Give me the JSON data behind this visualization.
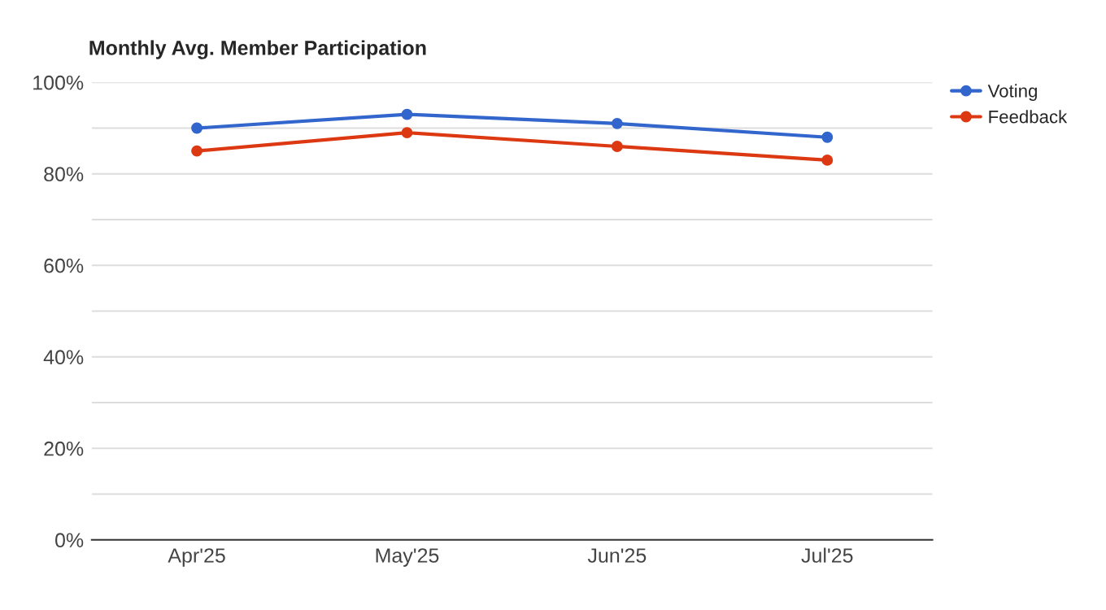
{
  "chart_data": {
    "type": "line",
    "title": "Monthly Avg. Member Participation",
    "categories": [
      "Apr'25",
      "May'25",
      "Jun'25",
      "Jul'25"
    ],
    "series": [
      {
        "name": "Voting",
        "color": "#3366cc",
        "values": [
          90,
          93,
          91,
          88
        ]
      },
      {
        "name": "Feedback",
        "color": "#dc3912",
        "values": [
          85,
          89,
          86,
          83
        ]
      }
    ],
    "ylim": [
      0,
      100
    ],
    "yticks": [
      {
        "value": 0,
        "label": "0%"
      },
      {
        "value": 10,
        "label": null
      },
      {
        "value": 20,
        "label": "20%"
      },
      {
        "value": 30,
        "label": null
      },
      {
        "value": 40,
        "label": "40%"
      },
      {
        "value": 50,
        "label": null
      },
      {
        "value": 60,
        "label": "60%"
      },
      {
        "value": 70,
        "label": null
      },
      {
        "value": 80,
        "label": "80%"
      },
      {
        "value": 90,
        "label": null
      },
      {
        "value": 100,
        "label": "100%"
      }
    ],
    "grid": "y",
    "legend": "top right",
    "marker": "circle",
    "line_style": "solid"
  }
}
